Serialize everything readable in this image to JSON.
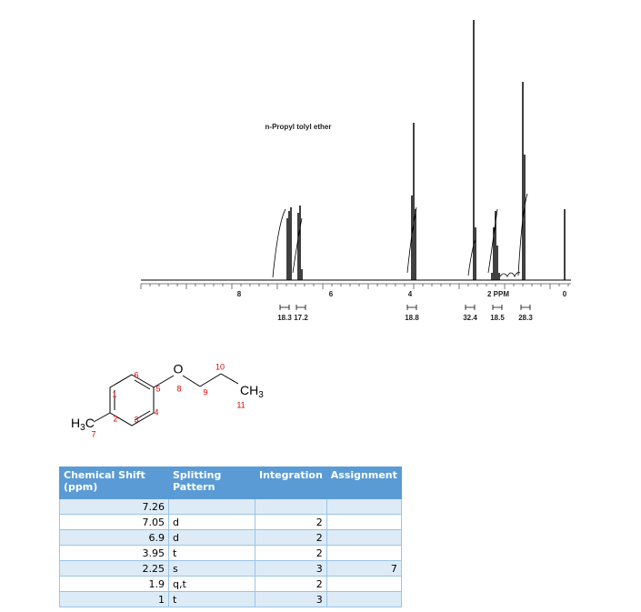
{
  "spectrum": {
    "title": "n-Propyl tolyl ether",
    "axis_labels": [
      "8",
      "6",
      "4",
      "2 PPM",
      "0"
    ],
    "integrations": [
      "18.3",
      "17.2",
      "18.8",
      "32.4",
      "18.5",
      "28.3"
    ]
  },
  "structure": {
    "oxygen": "O",
    "methyl_right": [
      "CH",
      "3"
    ],
    "methyl_left": [
      "H",
      "3",
      "C"
    ],
    "atom_numbers": [
      "1",
      "2",
      "3",
      "4",
      "5",
      "6",
      "7",
      "8",
      "9",
      "10",
      "11"
    ]
  },
  "table": {
    "header": [
      "Chemical Shift (ppm)",
      "Splitting Pattern",
      "Integration",
      "Assignment"
    ],
    "rows": [
      {
        "shift": 7.26
      },
      {
        "shift": 7.05,
        "splitting": "d",
        "integration": 2
      },
      {
        "shift": 6.9,
        "splitting": "d",
        "integration": 2
      },
      {
        "shift": 3.95,
        "splitting": "t",
        "integration": 2
      },
      {
        "shift": 2.25,
        "splitting": "s",
        "integration": 3,
        "assignment": 7
      },
      {
        "shift": 1.9,
        "splitting": "q,t",
        "integration": 2
      },
      {
        "shift": 1,
        "splitting": "t",
        "integration": 3
      }
    ]
  }
}
